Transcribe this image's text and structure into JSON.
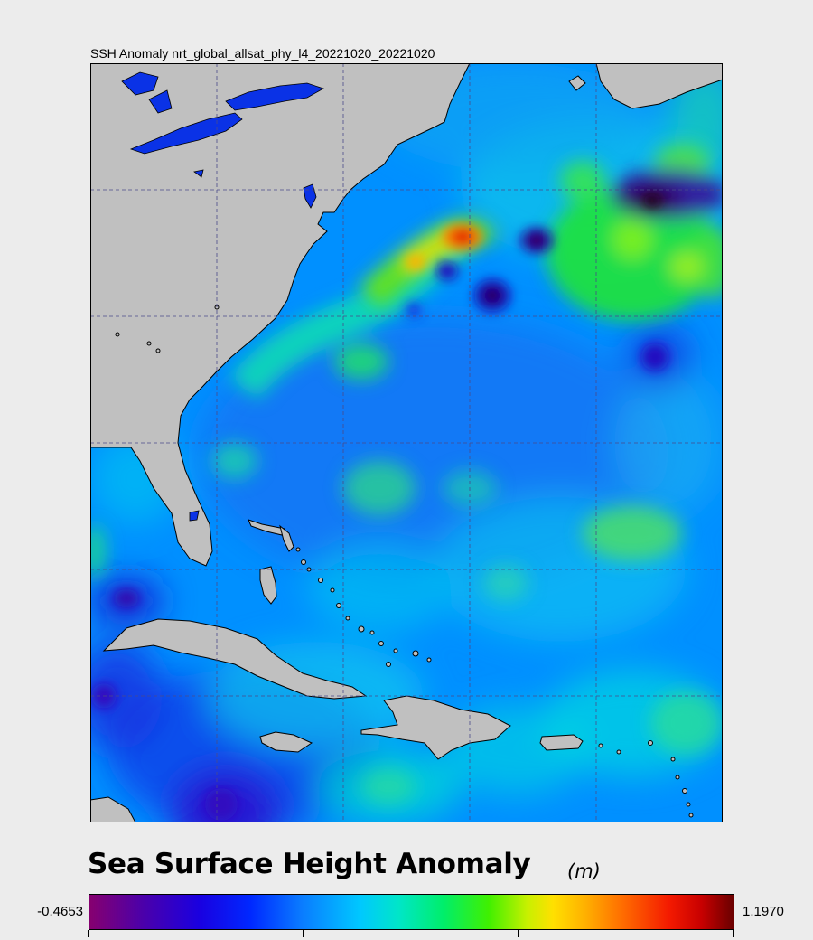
{
  "map": {
    "title": "SSH Anomaly nrt_global_allsat_phy_l4_20221020_20221020",
    "colors": {
      "land": "#c0c0c0",
      "ocean_base": "#0096ff",
      "lakes": "#0a32e6",
      "grid": "#4a4a8a"
    }
  },
  "legend": {
    "title": "Sea Surface Height Anomaly",
    "units": "(m)",
    "min_label": "-0.4653",
    "max_label": "1.1970"
  }
}
